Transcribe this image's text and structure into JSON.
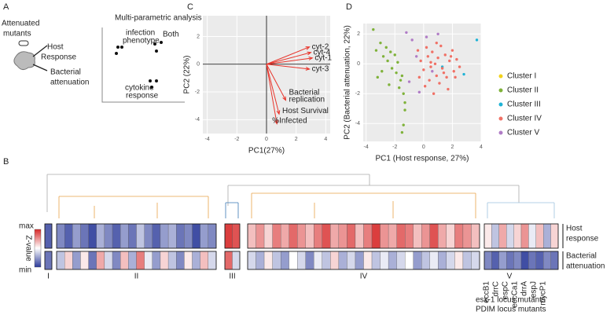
{
  "panels": [
    "A",
    "B",
    "C",
    "D"
  ],
  "panel_a": {
    "mutants": [
      "Attenuated",
      "mutants"
    ],
    "host": [
      "Host",
      "Response"
    ],
    "bacterial": [
      "Bacterial",
      "attenuation"
    ],
    "analysis": "Multi-parametric analysis",
    "infection": [
      "infection",
      "phenotype"
    ],
    "both": "Both",
    "cytokine": [
      "cytokine",
      "response"
    ]
  },
  "chart_data": [
    {
      "type": "biplot",
      "xlabel": "PC1(27%)",
      "ylabel": "PC2 (22%)",
      "xlim": [
        -4.3,
        4.3
      ],
      "ylim": [
        -5,
        3.5
      ],
      "xticks": [
        -4,
        -2,
        0,
        2,
        4
      ],
      "yticks": [
        -4,
        -2,
        0,
        2
      ],
      "grid": true,
      "color": "#e8352c",
      "vectors": [
        {
          "name": "cyt-2",
          "x": 2.9,
          "y": 1.25
        },
        {
          "name": "cyt-4",
          "x": 3.0,
          "y": 0.85
        },
        {
          "name": "cyt-1",
          "x": 3.1,
          "y": 0.45
        },
        {
          "name": "cyt-3",
          "x": 2.9,
          "y": -0.35
        },
        {
          "name": [
            "Bacterial",
            "replication"
          ],
          "x": 1.3,
          "y": -2.6
        },
        {
          "name": "Host Survival",
          "x": 0.85,
          "y": -3.6
        },
        {
          "name": "%Infected",
          "x": 0.7,
          "y": -4.3
        }
      ]
    },
    {
      "type": "scatter",
      "xlabel": "PC1 (Host response, 27%)",
      "ylabel": "PC2 (Bacterial attenuation, 22%)",
      "xlim": [
        -4.2,
        4.0
      ],
      "ylim": [
        -5.2,
        2.7
      ],
      "xticks": [
        -4,
        -2,
        0,
        2,
        4
      ],
      "yticks": [
        -4,
        -2,
        0,
        2
      ],
      "grid": true,
      "series": [
        {
          "name": "Cluster I",
          "color": "#f2d21b",
          "x": [],
          "y": []
        },
        {
          "name": "Cluster II",
          "color": "#7fb23a",
          "x": [
            -3.5,
            -3.3,
            -3.0,
            -2.8,
            -2.6,
            -2.5,
            -2.3,
            -2.2,
            -2.0,
            -1.9,
            -1.8,
            -1.6,
            -1.5,
            -1.4,
            -1.3,
            -1.7,
            -1.4,
            -1.5,
            -1.3,
            -2.9,
            -3.2,
            -2.4
          ],
          "y": [
            2.3,
            0.9,
            1.4,
            0.5,
            1.1,
            0.2,
            0.8,
            -0.3,
            0.6,
            -0.6,
            0.1,
            -1.1,
            -0.8,
            -2.0,
            -3.1,
            -1.6,
            -4.1,
            -4.6,
            -2.6,
            -0.5,
            -0.9,
            -1.4
          ]
        },
        {
          "name": "Cluster III",
          "color": "#1fb3d6",
          "x": [
            3.7,
            2.8,
            1.3
          ],
          "y": [
            1.6,
            -0.7,
            -0.2
          ]
        },
        {
          "name": "Cluster IV",
          "color": "#f07166",
          "x": [
            -0.4,
            -0.2,
            0.0,
            0.2,
            0.3,
            0.5,
            0.6,
            0.8,
            0.9,
            1.0,
            1.2,
            1.3,
            1.5,
            1.6,
            1.8,
            2.0,
            2.1,
            2.3,
            2.5,
            0.1,
            0.4,
            0.7,
            1.1,
            1.4,
            1.7,
            -0.3,
            0.9,
            1.9,
            2.2,
            0.5
          ],
          "y": [
            0.9,
            0.2,
            -0.4,
            1.1,
            0.5,
            -0.2,
            0.8,
            0.0,
            -0.8,
            0.4,
            1.2,
            -0.3,
            0.6,
            -0.9,
            0.2,
            0.9,
            -0.5,
            0.3,
            -0.2,
            -1.5,
            -1.1,
            -2.0,
            -1.3,
            -0.6,
            -1.7,
            -0.9,
            1.4,
            0.5,
            -0.9,
            0.1
          ]
        },
        {
          "name": "Cluster V",
          "color": "#b07cc6",
          "x": [
            -1.2,
            -0.8,
            -0.5,
            0.2,
            0.6,
            -1.0,
            1.0,
            -0.3
          ],
          "y": [
            2.1,
            1.6,
            0.5,
            1.8,
            -0.5,
            -1.2,
            2.0,
            -1.9
          ]
        }
      ]
    },
    {
      "type": "heatmap",
      "rows": [
        [
          "Host",
          "response"
        ],
        [
          "Bacterial",
          "attenuation"
        ]
      ],
      "zlim": [
        -1,
        1
      ],
      "zticks": [
        {
          "value": 1,
          "label": "max"
        },
        {
          "value": -1,
          "label": "min"
        }
      ],
      "colorbar_title": "Z-value",
      "clusters": [
        {
          "label": "I",
          "values": [
            [
              -0.8
            ],
            [
              -0.7
            ]
          ]
        },
        {
          "label": "II",
          "values": [
            [
              -0.6,
              -0.8,
              -0.5,
              -0.7,
              -0.9,
              -0.4,
              -0.6,
              -0.8,
              -0.5,
              -0.7,
              -0.3,
              -0.6,
              -0.8,
              -0.5,
              -0.4,
              -0.7,
              -0.6,
              -0.9,
              -0.5,
              -0.6
            ],
            [
              -0.3,
              0.2,
              -0.5,
              0.1,
              -0.7,
              0.4,
              -0.2,
              -0.6,
              0.3,
              -0.4,
              0.6,
              -0.1,
              -0.5,
              0.2,
              -0.3,
              -0.6,
              0.1,
              -0.4,
              0.3,
              -0.2
            ]
          ]
        },
        {
          "label": "III",
          "values": [
            [
              0.9,
              0.8
            ],
            [
              0.7,
              -0.2
            ]
          ]
        },
        {
          "label": "IV",
          "values": [
            [
              0.3,
              0.5,
              0.2,
              0.6,
              0.4,
              0.7,
              0.5,
              0.3,
              0.6,
              0.8,
              0.4,
              0.5,
              0.7,
              0.3,
              0.6,
              0.9,
              0.5,
              0.4,
              0.7,
              0.6,
              0.3,
              0.5,
              0.8,
              0.4,
              0.2,
              0.6,
              0.5,
              0.3
            ],
            [
              -0.2,
              -0.4,
              0.1,
              -0.3,
              -0.5,
              0.0,
              -0.2,
              -0.6,
              -0.1,
              -0.3,
              0.2,
              -0.4,
              -0.2,
              -0.5,
              0.1,
              -0.3,
              -0.1,
              -0.4,
              -0.2,
              0.0,
              -0.5,
              -0.3,
              -0.1,
              -0.4,
              -0.2,
              0.1,
              -0.3,
              -0.2
            ]
          ]
        },
        {
          "label": "V",
          "values": [
            [
              0.1,
              -0.3,
              0.4,
              -0.2,
              0.2,
              0.5,
              -0.1,
              0.3,
              -0.4,
              0.2
            ],
            [
              -0.6,
              -0.8,
              -0.5,
              -0.7,
              -0.6,
              -0.9,
              -0.7,
              -0.8,
              -0.6,
              -0.7
            ]
          ]
        }
      ],
      "gene_labels": [
        {
          "text": "eccB1",
          "color": "#2e9a4a"
        },
        {
          "text": "drrC",
          "color": "#e89a1c"
        },
        {
          "text": "espC",
          "color": "#2e9a4a"
        },
        {
          "text": "eccCa1",
          "color": "#2e9a4a"
        },
        {
          "text": "drrA",
          "color": "#e89a1c"
        },
        {
          "text": "espJ",
          "color": "#2e9a4a"
        },
        {
          "text": "mycP1",
          "color": "#2e9a4a"
        }
      ],
      "groups": [
        {
          "text": "esx-1 locus mutants",
          "color": "#2e9a4a"
        },
        {
          "text": "PDIM locus mutants",
          "color": "#e89a1c"
        }
      ]
    }
  ]
}
